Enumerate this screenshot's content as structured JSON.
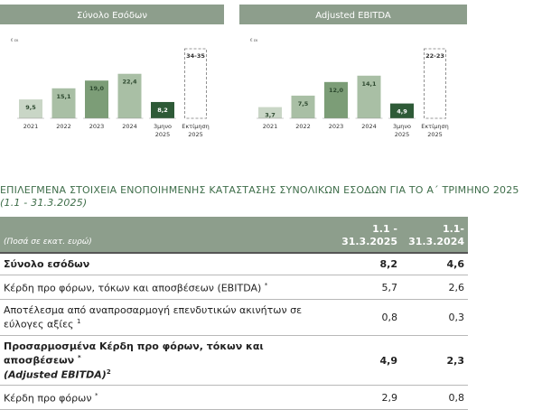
{
  "chart_data": [
    {
      "type": "bar",
      "title": "Σύνολο Εσόδων",
      "unit": "€ εκ",
      "categories": [
        "2021",
        "2022",
        "2023",
        "2024",
        "3μηνο 2025"
      ],
      "values": [
        9.5,
        15.1,
        19.0,
        22.4,
        8.2
      ],
      "value_labels": [
        "9,5",
        "15,1",
        "19,0",
        "22,4",
        "8,2"
      ],
      "colors": [
        "#c9d6c6",
        "#a9bfa5",
        "#7c9d77",
        "#a9bfa5",
        "#2e5a37"
      ],
      "estimate": {
        "category": "Εκτίμηση 2025",
        "range": [
          34,
          35
        ],
        "label": "34-35"
      }
    },
    {
      "type": "bar",
      "title": "Adjusted EBITDA",
      "unit": "€ εκ",
      "categories": [
        "2021",
        "2022",
        "2023",
        "2024",
        "3μηνο 2025"
      ],
      "values": [
        3.7,
        7.5,
        12.0,
        14.1,
        4.9
      ],
      "value_labels": [
        "3,7",
        "7,5",
        "12,0",
        "14,1",
        "4,9"
      ],
      "colors": [
        "#c9d6c6",
        "#a9bfa5",
        "#7c9d77",
        "#a9bfa5",
        "#2e5a37"
      ],
      "estimate": {
        "category": "Εκτίμηση 2025",
        "range": [
          22,
          23
        ],
        "label": "22-23"
      }
    }
  ],
  "section": {
    "title": "ΕΠΙΛΕΓΜΕΝΑ ΣΤΟΙΧΕΙΑ ΕΝΟΠΟΙΗΜΕΝΗΣ ΚΑΤΑΣΤΑΣΗΣ ΣΥΝΟΛΙΚΩΝ ΕΣΟΔΩΝ ΓΙΑ ΤΟ Α΄ ΤΡΙΜΗΝΟ 2025",
    "period": "(1.1 - 31.3.2025)"
  },
  "table": {
    "header": {
      "unit": "(Ποσά σε εκατ. ευρώ)",
      "col1": "1.1 - 31.3.2025",
      "col2": "1.1- 31.3.2024"
    },
    "rows": [
      {
        "label": "Σύνολο εσόδων",
        "v1": "8,2",
        "v2": "4,6"
      },
      {
        "label": "Κέρδη προ φόρων, τόκων και αποσβέσεων (EBITDA)",
        "note": "*",
        "v1": "5,7",
        "v2": "2,6"
      },
      {
        "label": "Αποτέλεσμα από αναπροσαρμογή επενδυτικών ακινήτων σε εύλογες αξίες",
        "note": "1",
        "v1": "0,8",
        "v2": "0,3"
      },
      {
        "label": "Προσαρμοσμένα Κέρδη προ φόρων, τόκων και αποσβέσεων",
        "note": "*",
        "sublabel": "(Adjusted EBITDA)",
        "subnote": "2",
        "v1": "4,9",
        "v2": "2,3"
      },
      {
        "label": "Κέρδη προ φόρων",
        "note": "*",
        "v1": "2,9",
        "v2": "0,8"
      }
    ]
  }
}
